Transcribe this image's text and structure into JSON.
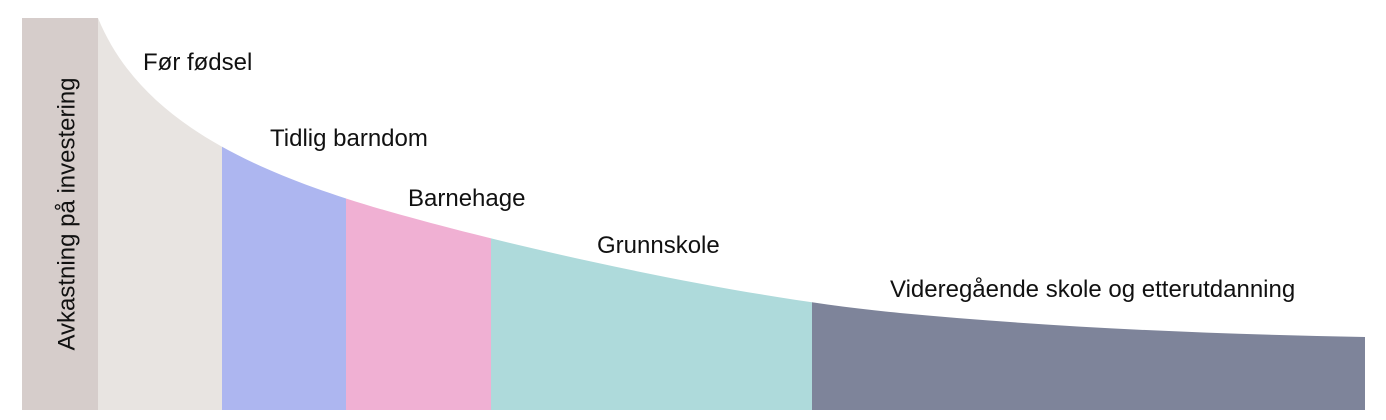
{
  "y_axis_label": "Avkastning på investering",
  "stages": [
    {
      "label": "Før fødsel"
    },
    {
      "label": "Tidlig barndom"
    },
    {
      "label": "Barnehage"
    },
    {
      "label": "Grunnskole"
    },
    {
      "label": "Videregående skole og etterutdanning"
    }
  ]
}
